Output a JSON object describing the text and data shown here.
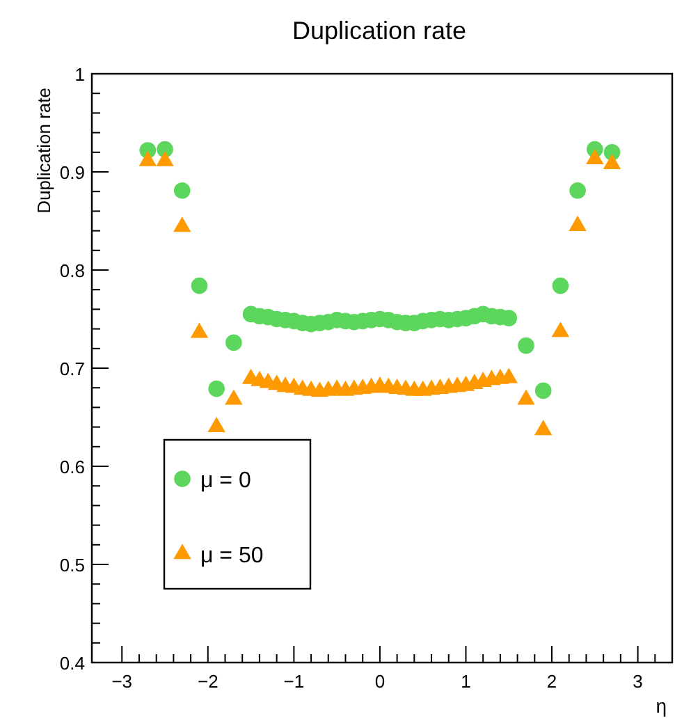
{
  "chart_data": {
    "type": "scatter",
    "title": "Duplication rate",
    "ylabel": "Duplication rate",
    "xlabel": "η",
    "xlim": [
      -3.35,
      3.4
    ],
    "ylim": [
      0.4,
      1
    ],
    "xticks": [
      -3,
      {
        "value": -2.8,
        "label": null
      },
      {
        "value": -2.6,
        "label": null
      },
      {
        "value": -2.4,
        "label": null
      },
      {
        "value": -2.2,
        "label": null
      },
      -2,
      {
        "value": -1.8,
        "label": null
      },
      {
        "value": -1.6,
        "label": null
      },
      {
        "value": -1.4,
        "label": null
      },
      {
        "value": -1.2,
        "label": null
      },
      -1,
      {
        "value": -0.8,
        "label": null
      },
      {
        "value": -0.6,
        "label": null
      },
      {
        "value": -0.4,
        "label": null
      },
      {
        "value": -0.2,
        "label": null
      },
      0,
      {
        "value": 0.2,
        "label": null
      },
      {
        "value": 0.4,
        "label": null
      },
      {
        "value": 0.6,
        "label": null
      },
      {
        "value": 0.8,
        "label": null
      },
      1,
      {
        "value": 1.2,
        "label": null
      },
      {
        "value": 1.4,
        "label": null
      },
      {
        "value": 1.6,
        "label": null
      },
      {
        "value": 1.8,
        "label": null
      },
      2,
      {
        "value": 2.2,
        "label": null
      },
      {
        "value": 2.4,
        "label": null
      },
      {
        "value": 2.6,
        "label": null
      },
      {
        "value": 2.8,
        "label": null
      },
      3,
      {
        "value": 3.2,
        "label": null
      }
    ],
    "yticks": [
      0.4,
      {
        "value": 0.42,
        "label": null
      },
      {
        "value": 0.44,
        "label": null
      },
      {
        "value": 0.46,
        "label": null
      },
      {
        "value": 0.48,
        "label": null
      },
      0.5,
      {
        "value": 0.52,
        "label": null
      },
      {
        "value": 0.54,
        "label": null
      },
      {
        "value": 0.56,
        "label": null
      },
      {
        "value": 0.58,
        "label": null
      },
      0.6,
      {
        "value": 0.62,
        "label": null
      },
      {
        "value": 0.64,
        "label": null
      },
      {
        "value": 0.66,
        "label": null
      },
      {
        "value": 0.68,
        "label": null
      },
      0.7,
      {
        "value": 0.72,
        "label": null
      },
      {
        "value": 0.74,
        "label": null
      },
      {
        "value": 0.76,
        "label": null
      },
      {
        "value": 0.78,
        "label": null
      },
      0.8,
      {
        "value": 0.82,
        "label": null
      },
      {
        "value": 0.84,
        "label": null
      },
      {
        "value": 0.86,
        "label": null
      },
      {
        "value": 0.88,
        "label": null
      },
      0.9,
      {
        "value": 0.92,
        "label": null
      },
      {
        "value": 0.94,
        "label": null
      },
      {
        "value": 0.96,
        "label": null
      },
      {
        "value": 0.98,
        "label": null
      },
      1
    ],
    "x": [
      -2.7,
      -2.5,
      -2.3,
      -2.1,
      -1.9,
      -1.7,
      -1.5,
      -1.4,
      -1.3,
      -1.2,
      -1.1,
      -1.0,
      -0.9,
      -0.8,
      -0.7,
      -0.6,
      -0.5,
      -0.4,
      -0.3,
      -0.2,
      -0.1,
      0,
      0.1,
      0.2,
      0.3,
      0.4,
      0.5,
      0.6,
      0.7,
      0.8,
      0.9,
      1.0,
      1.1,
      1.2,
      1.3,
      1.4,
      1.5,
      1.7,
      1.9,
      2.1,
      2.3,
      2.5,
      2.7
    ],
    "legend": "bottom left",
    "grid": false,
    "series": [
      {
        "name": "μ = 0",
        "color": "#5cd65c",
        "marker": "circle",
        "values": [
          0.922,
          0.923,
          0.881,
          0.784,
          0.679,
          0.726,
          0.755,
          0.753,
          0.752,
          0.75,
          0.749,
          0.748,
          0.746,
          0.745,
          0.746,
          0.747,
          0.749,
          0.748,
          0.747,
          0.748,
          0.749,
          0.75,
          0.749,
          0.747,
          0.746,
          0.746,
          0.748,
          0.749,
          0.75,
          0.749,
          0.75,
          0.751,
          0.753,
          0.755,
          0.753,
          0.752,
          0.751,
          0.723,
          0.677,
          0.784,
          0.881,
          0.923,
          0.92
        ]
      },
      {
        "name": "μ = 50",
        "color": "#ff9900",
        "marker": "triangle",
        "values": [
          0.911,
          0.911,
          0.844,
          0.736,
          0.64,
          0.668,
          0.689,
          0.687,
          0.685,
          0.683,
          0.681,
          0.68,
          0.678,
          0.677,
          0.676,
          0.677,
          0.678,
          0.677,
          0.678,
          0.679,
          0.68,
          0.681,
          0.68,
          0.679,
          0.678,
          0.677,
          0.677,
          0.678,
          0.679,
          0.68,
          0.681,
          0.682,
          0.684,
          0.686,
          0.688,
          0.689,
          0.69,
          0.668,
          0.637,
          0.737,
          0.845,
          0.913,
          0.908
        ]
      }
    ]
  }
}
